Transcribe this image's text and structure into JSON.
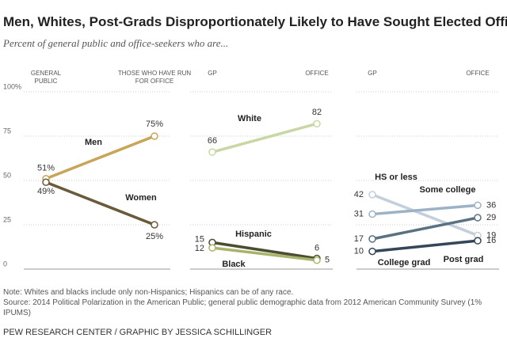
{
  "title": "Men, Whites, Post-Grads Disproportionately Likely to Have Sought Elected Office",
  "subtitle": "Percent of general public and office-seekers who are...",
  "chart_data": [
    {
      "type": "slope",
      "categories": [
        "GENERAL PUBLIC",
        "THOSE WHO HAVE RUN FOR OFFICE"
      ],
      "ylim": [
        0,
        100
      ],
      "yticks": [
        0,
        25,
        50,
        75,
        {
          "value": 100,
          "label": "100%"
        }
      ],
      "grid": true,
      "series": [
        {
          "name": "Men",
          "color": "#c9a55a",
          "values": [
            51,
            75
          ],
          "value_labels": [
            "51%",
            "75%"
          ]
        },
        {
          "name": "Women",
          "color": "#6b5a3a",
          "values": [
            49,
            25
          ],
          "value_labels": [
            "49%",
            "25%"
          ]
        }
      ]
    },
    {
      "type": "slope",
      "categories": [
        "GP",
        "OFFICE"
      ],
      "ylim": [
        0,
        100
      ],
      "yticks": [
        0,
        25,
        50,
        75,
        100
      ],
      "grid": true,
      "series": [
        {
          "name": "White",
          "color": "#c8d7a4",
          "values": [
            66,
            82
          ]
        },
        {
          "name": "Hispanic",
          "color": "#4c4c33",
          "values": [
            15,
            6
          ]
        },
        {
          "name": "Black",
          "color": "#a8b46a",
          "values": [
            12,
            5
          ]
        }
      ]
    },
    {
      "type": "slope",
      "categories": [
        "GP",
        "OFFICE"
      ],
      "ylim": [
        0,
        100
      ],
      "yticks": [
        0,
        25,
        50,
        75,
        100
      ],
      "grid": true,
      "series": [
        {
          "name": "HS or less",
          "color": "#c3cfdb",
          "values": [
            42,
            19
          ]
        },
        {
          "name": "Some college",
          "color": "#9cb2c7",
          "values": [
            31,
            36
          ]
        },
        {
          "name": "College grad",
          "color": "#587282",
          "values": [
            17,
            29
          ]
        },
        {
          "name": "Post grad",
          "color": "#324759",
          "values": [
            10,
            16
          ]
        }
      ]
    }
  ],
  "note": "Note: Whites and blacks include only non-Hispanics; Hispanics can be of any race.",
  "source": "Source: 2014 Political Polarization in the American Public; general public demographic data from 2012 American Community Survey (1% IPUMS)",
  "footer": "PEW RESEARCH CENTER / GRAPHIC BY JESSICA SCHILLINGER"
}
